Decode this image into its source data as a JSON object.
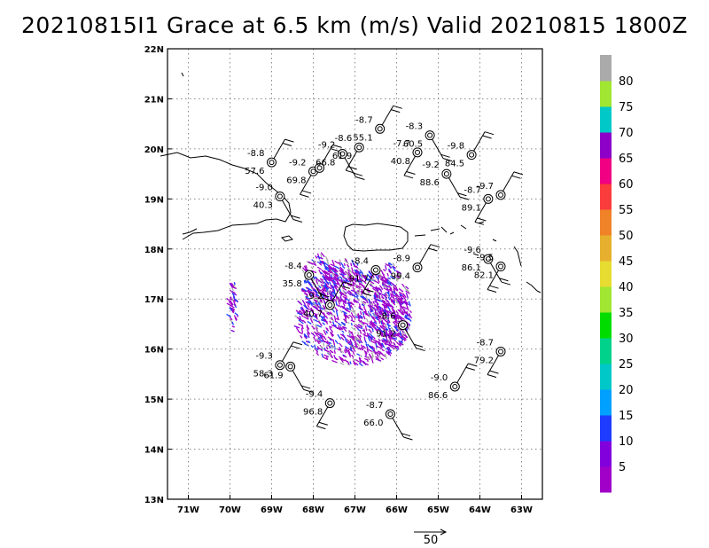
{
  "title": "20210815I1 Grace at 6.5 km (m/s) Valid 20210815 1800Z",
  "map": {
    "lon_range": [
      -71.5,
      -62.5
    ],
    "lat_range": [
      13,
      22
    ],
    "lon_ticks": [
      {
        "v": -71,
        "label": "71W"
      },
      {
        "v": -70,
        "label": "70W"
      },
      {
        "v": -69,
        "label": "69W"
      },
      {
        "v": -68,
        "label": "68W"
      },
      {
        "v": -67,
        "label": "67W"
      },
      {
        "v": -66,
        "label": "66W"
      },
      {
        "v": -65,
        "label": "65W"
      },
      {
        "v": -64,
        "label": "64W"
      },
      {
        "v": -63,
        "label": "63W"
      }
    ],
    "lat_ticks": [
      {
        "v": 13,
        "label": "13N"
      },
      {
        "v": 14,
        "label": "14N"
      },
      {
        "v": 15,
        "label": "15N"
      },
      {
        "v": 16,
        "label": "16N"
      },
      {
        "v": 17,
        "label": "17N"
      },
      {
        "v": 18,
        "label": "18N"
      },
      {
        "v": 19,
        "label": "19N"
      },
      {
        "v": 20,
        "label": "20N"
      },
      {
        "v": 21,
        "label": "21N"
      },
      {
        "v": 22,
        "label": "22N"
      }
    ],
    "grid": "dotted"
  },
  "observations": [
    {
      "lon": -69.0,
      "lat": 19.73,
      "top": "-8.8",
      "bottom": "57.6"
    },
    {
      "lon": -68.8,
      "lat": 19.05,
      "top": "-9.0",
      "bottom": "40.3"
    },
    {
      "lon": -68.0,
      "lat": 19.55,
      "top": "-9.2",
      "bottom": "69.8"
    },
    {
      "lon": -67.85,
      "lat": 19.62,
      "top": "",
      "bottom": ""
    },
    {
      "lon": -67.3,
      "lat": 19.9,
      "top": "-9.2",
      "bottom": "66.8"
    },
    {
      "lon": -66.9,
      "lat": 20.03,
      "top": "-8.6",
      "bottom": "61.9"
    },
    {
      "lon": -66.4,
      "lat": 20.4,
      "top": "-8.7",
      "bottom": "55.1"
    },
    {
      "lon": -65.2,
      "lat": 20.27,
      "top": "-8.3",
      "bottom": "60.5"
    },
    {
      "lon": -65.5,
      "lat": 19.93,
      "top": "-7.7",
      "bottom": "40.8"
    },
    {
      "lon": -64.2,
      "lat": 19.88,
      "top": "-9.8",
      "bottom": "84.5"
    },
    {
      "lon": -64.8,
      "lat": 19.5,
      "top": "-9.2",
      "bottom": "88.6"
    },
    {
      "lon": -63.8,
      "lat": 19.0,
      "top": "-8.7",
      "bottom": "89.1"
    },
    {
      "lon": -63.5,
      "lat": 19.08,
      "top": "-9.7",
      "bottom": ""
    },
    {
      "lon": -68.1,
      "lat": 17.48,
      "top": "-8.4",
      "bottom": "35.8"
    },
    {
      "lon": -66.5,
      "lat": 17.58,
      "top": "-8.4",
      "bottom": "91.7"
    },
    {
      "lon": -65.5,
      "lat": 17.63,
      "top": "-8.9",
      "bottom": "99.4"
    },
    {
      "lon": -63.8,
      "lat": 17.8,
      "top": "-9.6",
      "bottom": "86.1"
    },
    {
      "lon": -63.5,
      "lat": 17.65,
      "top": "-9.5",
      "bottom": "82.1"
    },
    {
      "lon": -67.6,
      "lat": 16.88,
      "top": "-9.2",
      "bottom": "40.7"
    },
    {
      "lon": -65.85,
      "lat": 16.48,
      "top": "-8.6",
      "bottom": "91.2"
    },
    {
      "lon": -63.5,
      "lat": 15.95,
      "top": "-8.7",
      "bottom": "79.2"
    },
    {
      "lon": -68.8,
      "lat": 15.68,
      "top": "-9.3",
      "bottom": "58.3"
    },
    {
      "lon": -68.55,
      "lat": 15.65,
      "top": "",
      "bottom": "61.9"
    },
    {
      "lon": -67.6,
      "lat": 14.92,
      "top": "-9.4",
      "bottom": "96.8"
    },
    {
      "lon": -64.6,
      "lat": 15.25,
      "top": "-9.0",
      "bottom": "86.6"
    },
    {
      "lon": -66.15,
      "lat": 14.7,
      "top": "-8.7",
      "bottom": "66.0"
    }
  ],
  "colorbar": {
    "levels": [
      "5",
      "10",
      "15",
      "20",
      "25",
      "30",
      "35",
      "40",
      "45",
      "50",
      "55",
      "60",
      "65",
      "70",
      "75",
      "80"
    ],
    "colors": [
      "#a000c8",
      "#8200dc",
      "#1e3cff",
      "#00a0ff",
      "#00c8c8",
      "#00d28c",
      "#00dc00",
      "#a0e632",
      "#e6dc32",
      "#e6af2d",
      "#f08228",
      "#fa3c3c",
      "#f00082",
      "#8c00c8",
      "#00c8c8",
      "#a0e632",
      "#aaaaaa"
    ]
  },
  "reference_vector": {
    "label": "50"
  }
}
